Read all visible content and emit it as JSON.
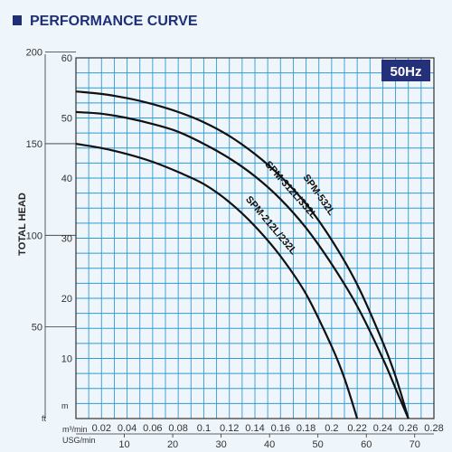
{
  "title": "PERFORMANCE CURVE",
  "badge": "50Hz",
  "chart_data": {
    "type": "line",
    "ylabel": "TOTAL HEAD",
    "units": {
      "ft": "ft",
      "m": "m",
      "flow_m3": "m³/min",
      "flow_usg": "USG/min"
    },
    "x_m3min": {
      "range": [
        0,
        0.28
      ],
      "ticks": [
        0.02,
        0.04,
        0.06,
        0.08,
        0.1,
        0.12,
        0.14,
        0.16,
        0.18,
        0.2,
        0.22,
        0.24,
        0.26,
        0.28
      ],
      "tick_labels": [
        "0.02",
        "0.04",
        "0.06",
        "0.08",
        "0.1",
        "0.12",
        "0.14",
        "0.16",
        "0.18",
        "0.2",
        "0.22",
        "0.24",
        "0.26",
        "0.28"
      ]
    },
    "x_usgmin": {
      "ticks": [
        10,
        20,
        30,
        40,
        50,
        60,
        70
      ],
      "tick_labels": [
        "10",
        "20",
        "30",
        "40",
        "50",
        "60",
        "70"
      ]
    },
    "y_m": {
      "range": [
        0,
        60
      ],
      "ticks": [
        10,
        20,
        30,
        40,
        50,
        60
      ],
      "tick_labels": [
        "10",
        "20",
        "30",
        "40",
        "50",
        "60"
      ]
    },
    "y_ft": {
      "ticks": [
        50,
        100,
        150,
        200
      ],
      "tick_labels": [
        "50",
        "100",
        "150",
        "200"
      ]
    },
    "grid": true,
    "series": [
      {
        "name": "SPM-532L",
        "x": [
          0,
          0.02,
          0.04,
          0.06,
          0.08,
          0.1,
          0.12,
          0.14,
          0.16,
          0.18,
          0.2,
          0.22,
          0.24,
          0.25,
          0.26
        ],
        "y": [
          54.4,
          54.0,
          53.3,
          52.3,
          51.0,
          49.3,
          47.0,
          44.0,
          40.3,
          35.7,
          29.7,
          22.3,
          12.7,
          7.0,
          0
        ]
      },
      {
        "name": "SPM-312L/332L",
        "x": [
          0,
          0.02,
          0.04,
          0.06,
          0.08,
          0.1,
          0.12,
          0.14,
          0.16,
          0.18,
          0.2,
          0.22,
          0.24,
          0.25,
          0.26
        ],
        "y": [
          51.0,
          50.7,
          50.0,
          49.0,
          47.7,
          45.7,
          43.3,
          40.3,
          36.5,
          31.7,
          25.7,
          18.7,
          10.0,
          5.0,
          0
        ]
      },
      {
        "name": "SPM-212L/232L",
        "x": [
          0,
          0.02,
          0.04,
          0.06,
          0.08,
          0.1,
          0.12,
          0.14,
          0.16,
          0.18,
          0.2,
          0.21,
          0.22
        ],
        "y": [
          45.7,
          45.0,
          44.0,
          42.7,
          41.0,
          39.0,
          36.0,
          32.0,
          27.0,
          20.7,
          12.0,
          6.7,
          0
        ]
      }
    ]
  }
}
